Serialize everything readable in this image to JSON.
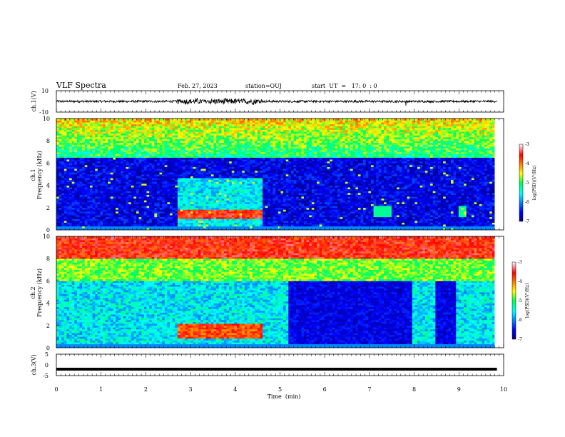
{
  "header": {
    "title": "VLF Spectra",
    "date": "Feb. 27, 2023",
    "station": "station=OUJ",
    "start": "start  UT  =   17: 0  : 0"
  },
  "chart_data": [
    {
      "type": "line",
      "panel": "ch1-waveform",
      "ylabel": "ch.1(V)",
      "ylim": [
        -10,
        10
      ],
      "y_ticks": [
        "10",
        "-10"
      ],
      "xlim": [
        0,
        10
      ],
      "description_values": {
        "baseline_mean": 0.0,
        "baseline_amplitude": 1.0,
        "bursts": [
          {
            "x_start": 2.7,
            "x_end": 4.6,
            "amplitude": 3.5
          },
          {
            "x_start": 7.8,
            "x_end": 7.82,
            "amplitude": 6
          }
        ]
      },
      "color": "#000000"
    },
    {
      "type": "heatmap",
      "panel": "ch1-spectrogram",
      "ylabel": "ch.1\nFrequency (kHz)",
      "ylabel_lines": [
        "ch.1",
        "Frequency (kHz)"
      ],
      "ylim": [
        0,
        10
      ],
      "y_ticks": [
        "0",
        "2",
        "4",
        "6",
        "8",
        "10"
      ],
      "xlim": [
        0,
        10
      ],
      "colorbar": {
        "label": "log(PSD)(V²/Hz)",
        "ticks": [
          "-3",
          "-4",
          "-5",
          "-6",
          "-7"
        ],
        "range": [
          -7,
          -3
        ]
      },
      "features": {
        "high_band_level": -5.2,
        "low_band_level": -6.6,
        "enhanced_segment": {
          "x_start": 2.7,
          "x_end": 4.6,
          "f_start": 0.3,
          "f_end": 4.7
        },
        "weak_patches": [
          {
            "x_start": 7.1,
            "x_end": 7.5
          },
          {
            "x_start": 9.0,
            "x_end": 9.15
          }
        ],
        "data_end_min": 9.8
      }
    },
    {
      "type": "heatmap",
      "panel": "ch2-spectrogram",
      "ylabel_lines": [
        "ch.2",
        "Frequency (kHz)"
      ],
      "ylim": [
        0,
        10
      ],
      "y_ticks": [
        "0",
        "2",
        "4",
        "6",
        "8",
        "10"
      ],
      "xlim": [
        0,
        10
      ],
      "colorbar": {
        "label": "log(PSD)(V²/Hz)",
        "ticks": [
          "-3",
          "-4",
          "-5",
          "-6",
          "-7"
        ],
        "range": [
          -7,
          -3
        ]
      },
      "features": {
        "top_level": -3.6,
        "quiet_intervals": [
          {
            "x_start": 5.2,
            "x_end": 7.95
          },
          {
            "x_start": 8.5,
            "x_end": 8.95
          }
        ],
        "enhanced_segment": {
          "x_start": 2.7,
          "x_end": 4.6,
          "f_start": 0.8,
          "f_end": 2.2
        },
        "data_end_min": 9.8
      }
    },
    {
      "type": "line",
      "panel": "ch3-waveform",
      "ylabel": "ch.3(V)",
      "ylim": [
        -5,
        5
      ],
      "y_ticks": [
        "5",
        "0",
        "-5"
      ],
      "xlim": [
        0,
        10
      ],
      "description_values": {
        "level": -2.0
      },
      "color": "#000000"
    }
  ],
  "x_axis": {
    "label": "Time  (min)",
    "ticks": [
      "0",
      "1",
      "2",
      "3",
      "4",
      "5",
      "6",
      "7",
      "8",
      "9",
      "10"
    ]
  }
}
